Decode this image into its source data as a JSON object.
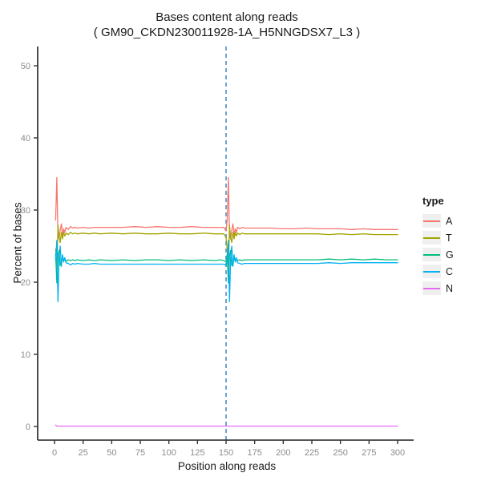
{
  "title": {
    "line1": "Bases content along reads",
    "line2": "( GM90_CKDN230011928-1A_H5NNGDSX7_L3 )"
  },
  "legend": {
    "title": "type"
  },
  "colors": {
    "background": "#ffffff",
    "axis_line": "#1f1f1f",
    "tick_mark": "#333333",
    "tick_label": "#8c8c8c",
    "title_text": "#1a1a1a",
    "legend_key_bg": "#efefef",
    "vline": "#6FA3D2"
  },
  "chart_data": {
    "type": "line",
    "title": "Bases content along reads",
    "subtitle": "( GM90_CKDN230011928-1A_H5NNGDSX7_L3 )",
    "xlabel": "Position along reads",
    "ylabel": "Percent of bases",
    "xlim": [
      0,
      300
    ],
    "ylim": [
      0,
      52
    ],
    "x_ticks": [
      0,
      25,
      50,
      75,
      100,
      125,
      150,
      175,
      200,
      225,
      250,
      275,
      300
    ],
    "y_ticks": [
      0,
      10,
      20,
      30,
      40,
      50
    ],
    "grid": false,
    "legend_position": "right",
    "vline": {
      "x": 150,
      "color": "#6FA3D2",
      "style": "dashed"
    },
    "x": [
      1,
      2,
      3,
      4,
      5,
      6,
      7,
      8,
      9,
      10,
      12,
      14,
      16,
      18,
      20,
      25,
      30,
      35,
      40,
      50,
      60,
      70,
      80,
      90,
      100,
      110,
      120,
      130,
      140,
      145,
      148,
      150,
      151,
      152,
      153,
      154,
      155,
      156,
      157,
      158,
      159,
      160,
      162,
      164,
      166,
      168,
      170,
      175,
      180,
      190,
      200,
      210,
      220,
      230,
      240,
      250,
      260,
      270,
      280,
      290,
      300
    ],
    "series": [
      {
        "name": "A",
        "color": "#F8766D",
        "values": [
          28.6,
          34.5,
          26.3,
          26.0,
          27.2,
          28.1,
          26.6,
          27.4,
          26.9,
          27.6,
          27.3,
          27.7,
          27.5,
          27.6,
          27.5,
          27.6,
          27.5,
          27.6,
          27.6,
          27.6,
          27.6,
          27.7,
          27.6,
          27.7,
          27.6,
          27.6,
          27.7,
          27.6,
          27.6,
          27.6,
          27.6,
          27.1,
          28.6,
          34.5,
          26.3,
          26.0,
          27.2,
          28.1,
          26.6,
          27.4,
          26.9,
          27.6,
          27.4,
          27.6,
          27.5,
          27.5,
          27.5,
          27.5,
          27.5,
          27.5,
          27.4,
          27.4,
          27.5,
          27.4,
          27.4,
          27.4,
          27.3,
          27.4,
          27.3,
          27.3,
          27.3
        ]
      },
      {
        "name": "T",
        "color": "#A3A500",
        "values": [
          24.6,
          21.3,
          27.9,
          26.2,
          25.5,
          26.9,
          26.0,
          26.9,
          26.4,
          26.8,
          26.6,
          26.9,
          26.7,
          26.8,
          26.7,
          26.8,
          26.7,
          26.8,
          26.7,
          26.8,
          26.7,
          26.8,
          26.7,
          26.7,
          26.8,
          26.7,
          26.7,
          26.8,
          26.7,
          26.7,
          26.7,
          26.2,
          24.6,
          21.3,
          27.9,
          26.2,
          25.5,
          26.9,
          26.0,
          26.9,
          26.4,
          26.8,
          26.6,
          26.8,
          26.7,
          26.7,
          26.7,
          26.7,
          26.7,
          26.7,
          26.7,
          26.7,
          26.7,
          26.7,
          26.6,
          26.7,
          26.6,
          26.7,
          26.6,
          26.6,
          26.6
        ]
      },
      {
        "name": "G",
        "color": "#00BF7D",
        "values": [
          23.9,
          19.9,
          23.6,
          24.4,
          22.3,
          22.8,
          23.6,
          22.8,
          23.3,
          22.9,
          23.1,
          23.0,
          23.1,
          23.0,
          23.1,
          23.0,
          23.1,
          23.0,
          23.1,
          23.0,
          23.1,
          23.0,
          23.1,
          23.1,
          23.0,
          23.1,
          23.0,
          23.1,
          23.0,
          23.1,
          23.0,
          22.8,
          23.9,
          19.9,
          23.6,
          24.4,
          22.3,
          22.8,
          23.6,
          22.8,
          23.3,
          23.0,
          23.1,
          23.0,
          23.1,
          23.1,
          23.1,
          23.1,
          23.1,
          23.1,
          23.1,
          23.1,
          23.1,
          23.1,
          23.2,
          23.1,
          23.2,
          23.1,
          23.2,
          23.1,
          23.1
        ]
      },
      {
        "name": "C",
        "color": "#00B0F6",
        "values": [
          23.0,
          25.8,
          17.3,
          23.4,
          25.0,
          22.2,
          23.8,
          22.9,
          23.4,
          22.7,
          22.6,
          22.4,
          22.6,
          22.5,
          22.6,
          22.5,
          22.5,
          22.6,
          22.5,
          22.5,
          22.5,
          22.5,
          22.5,
          22.5,
          22.5,
          22.5,
          22.5,
          22.5,
          22.5,
          22.5,
          22.5,
          22.3,
          23.0,
          25.8,
          17.3,
          23.4,
          25.0,
          22.2,
          23.8,
          22.9,
          23.4,
          22.7,
          22.6,
          22.5,
          22.6,
          22.6,
          22.6,
          22.6,
          22.6,
          22.6,
          22.6,
          22.6,
          22.6,
          22.6,
          22.7,
          22.6,
          22.7,
          22.7,
          22.7,
          22.7,
          22.7
        ]
      },
      {
        "name": "N",
        "color": "#E76BF3",
        "values": [
          0.2,
          0.05,
          0.05,
          0.05,
          0.05,
          0.05,
          0.05,
          0.05,
          0.05,
          0.05,
          0.05,
          0.05,
          0.05,
          0.05,
          0.05,
          0.05,
          0.05,
          0.05,
          0.05,
          0.05,
          0.05,
          0.05,
          0.05,
          0.05,
          0.05,
          0.05,
          0.05,
          0.05,
          0.05,
          0.05,
          0.05,
          0.05,
          0.05,
          0.05,
          0.05,
          0.05,
          0.05,
          0.05,
          0.05,
          0.05,
          0.05,
          0.05,
          0.05,
          0.05,
          0.05,
          0.05,
          0.05,
          0.05,
          0.05,
          0.05,
          0.05,
          0.05,
          0.05,
          0.05,
          0.05,
          0.05,
          0.05,
          0.05,
          0.05,
          0.05,
          0.05
        ]
      }
    ]
  }
}
